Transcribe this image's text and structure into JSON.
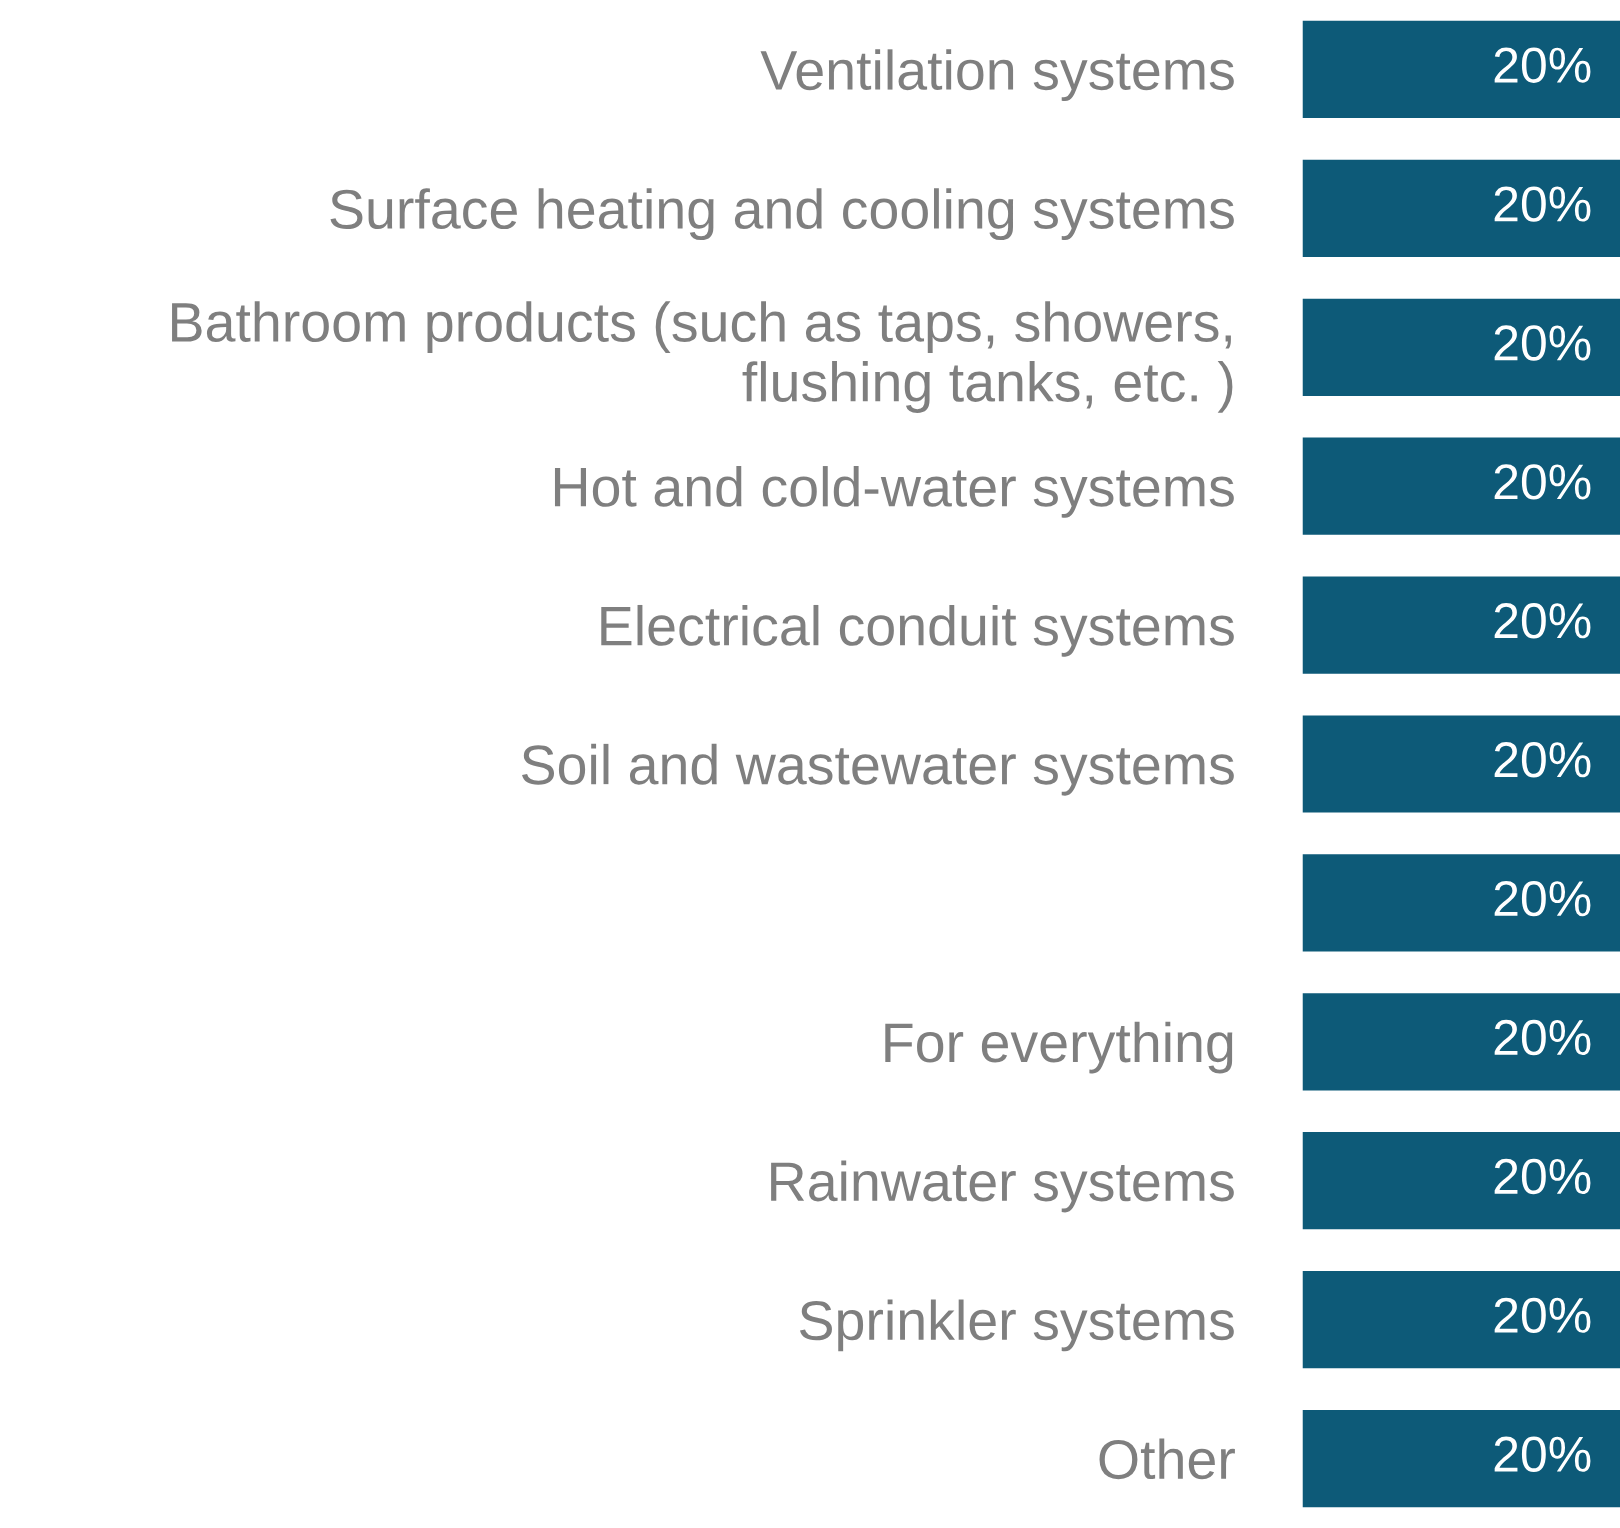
{
  "chart_data": {
    "type": "bar",
    "orientation": "horizontal",
    "categories": [
      "Ventilation systems",
      "Surface heating and cooling systems",
      "Bathroom products (such as taps, showers,\nflushing tanks, etc. )",
      "Hot and cold-water systems",
      "Electrical conduit systems",
      "Soil and wastewater systems",
      null,
      "For everything",
      "Rainwater systems",
      "Sprinkler systems",
      "Other"
    ],
    "values": [
      20,
      20,
      20,
      20,
      20,
      20,
      20,
      20,
      20,
      20,
      20
    ],
    "value_labels": [
      "20%",
      "20%",
      "20%",
      "20%",
      "20%",
      "20%",
      "20%",
      "20%",
      "20%",
      "20%",
      "20%"
    ],
    "color": "#0d5a78",
    "grid": false,
    "legend": false
  }
}
